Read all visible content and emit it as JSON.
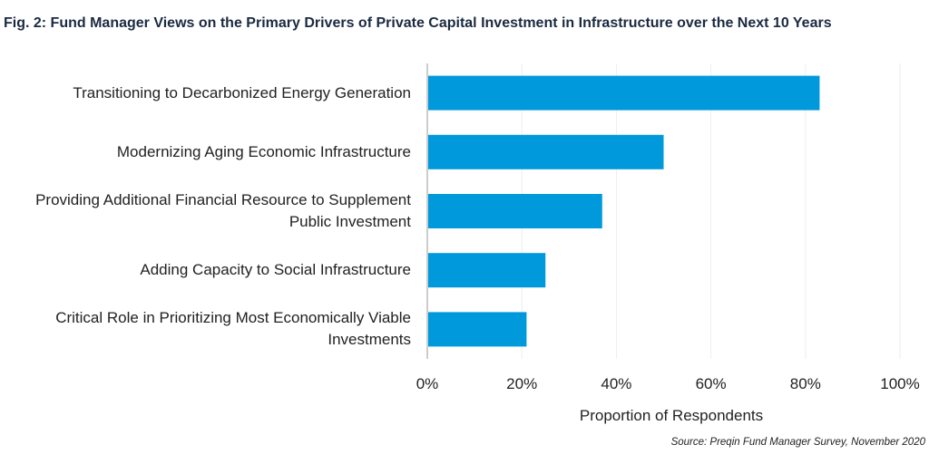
{
  "chart_data": {
    "type": "bar",
    "orientation": "horizontal",
    "title": "Fig. 2: Fund Manager Views on the Primary Drivers of Private Capital Investment in Infrastructure over the Next 10 Years",
    "categories": [
      "Transitioning to Decarbonized Energy Generation",
      "Modernizing Aging Economic Infrastructure",
      "Providing Additional Financial Resource to Supplement Public Investment",
      "Adding Capacity to Social Infrastructure",
      "Critical Role in Prioritizing Most Economically Viable Investments"
    ],
    "category_lines": [
      [
        "Transitioning to Decarbonized Energy Generation"
      ],
      [
        "Modernizing Aging Economic Infrastructure"
      ],
      [
        "Providing Additional Financial Resource to Supplement",
        "Public Investment"
      ],
      [
        "Adding Capacity to Social Infrastructure"
      ],
      [
        "Critical Role in Prioritizing Most Economically Viable",
        "Investments"
      ]
    ],
    "values": [
      83,
      50,
      37,
      25,
      21
    ],
    "xlabel": "Proportion of Respondents",
    "ylabel": "",
    "xlim": [
      0,
      100
    ],
    "ticks": [
      "0%",
      "20%",
      "40%",
      "60%",
      "80%",
      "100%"
    ],
    "grid": true,
    "bar_color": "#0099dc",
    "grid_color": "#eeeeee",
    "axis_color": "#bbbbbb",
    "source": "Source: Preqin Fund Manager Survey, November 2020"
  }
}
